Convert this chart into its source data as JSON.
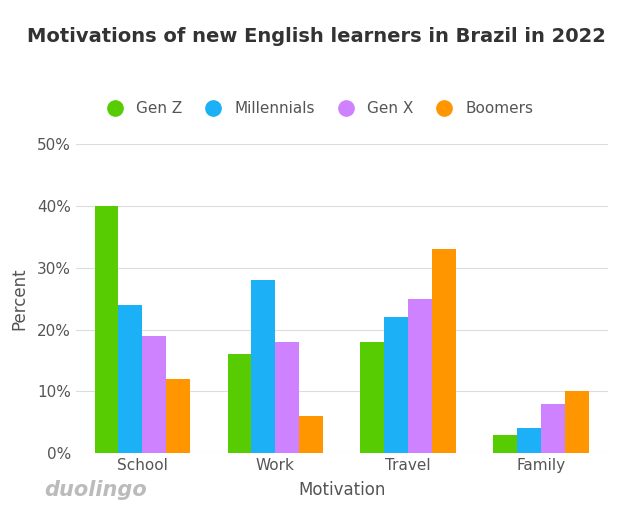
{
  "title": "Motivations of new English learners in Brazil in 2022",
  "xlabel": "Motivation",
  "ylabel": "Percent",
  "categories": [
    "School",
    "Work",
    "Travel",
    "Family"
  ],
  "generations": [
    "Gen Z",
    "Millennials",
    "Gen X",
    "Boomers"
  ],
  "colors": [
    "#58CC02",
    "#1CB0F6",
    "#CE82FF",
    "#FF9600"
  ],
  "values": {
    "School": [
      40,
      24,
      19,
      12
    ],
    "Work": [
      16,
      28,
      18,
      6
    ],
    "Travel": [
      18,
      22,
      25,
      33
    ],
    "Family": [
      3,
      4,
      8,
      10
    ]
  },
  "ylim": [
    0,
    50
  ],
  "yticks": [
    0,
    10,
    20,
    30,
    40,
    50
  ],
  "ytick_labels": [
    "0%",
    "10%",
    "20%",
    "30%",
    "40%",
    "50%"
  ],
  "background_color": "#FFFFFF",
  "grid_color": "#DDDDDD",
  "title_fontsize": 14,
  "axis_label_fontsize": 12,
  "tick_fontsize": 11,
  "legend_fontsize": 11,
  "bar_width": 0.18,
  "watermark": "duolingo",
  "watermark_color": "#BBBBBB",
  "watermark_fontsize": 15
}
